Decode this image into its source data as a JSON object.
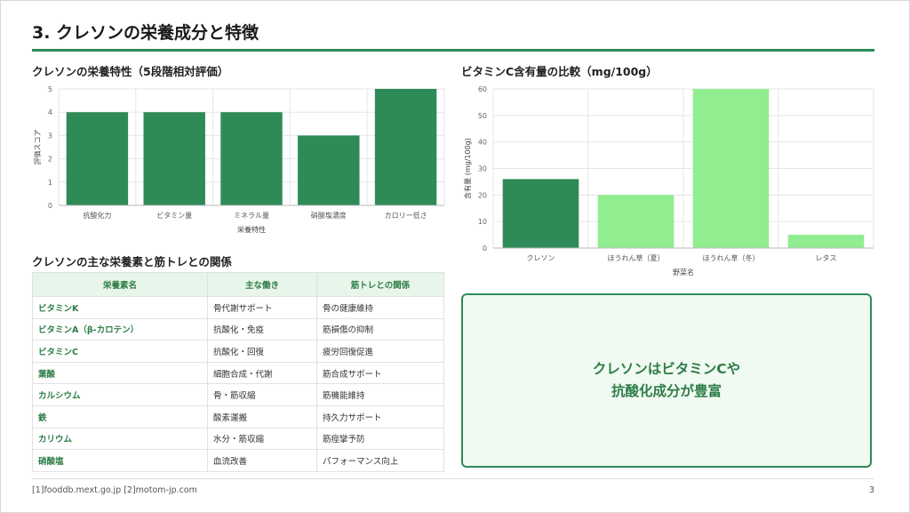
{
  "slide": {
    "title": "3. クレソンの栄養成分と特徴",
    "footer": "[1]fooddb.mext.go.jp   [2]motom-jp.com",
    "page_number": "3"
  },
  "sections": {
    "chart1_title": "クレソンの栄養特性（5段階相対評価）",
    "chart2_title": "ビタミンC含有量の比較（mg/100g）",
    "table_title": "クレソンの主な栄養素と筋トレとの関係"
  },
  "chart_data": [
    {
      "type": "bar",
      "categories": [
        "抗酸化力",
        "ビタミン量",
        "ミネラル量",
        "硝酸塩濃度",
        "カロリー低さ"
      ],
      "values": [
        4,
        4,
        4,
        3,
        5
      ],
      "xlabel": "栄養特性",
      "ylabel": "評価スコア",
      "ylim": [
        0,
        5
      ],
      "yticks": [
        "0",
        "1",
        "2",
        "3",
        "4",
        "5"
      ],
      "grid": true,
      "colors": [
        "#2e8b57"
      ]
    },
    {
      "type": "bar",
      "categories": [
        "クレソン",
        "ほうれん草（夏）",
        "ほうれん草（冬）",
        "レタス"
      ],
      "values": [
        26,
        20,
        60,
        5
      ],
      "xlabel": "野菜名",
      "ylabel": "含有量 (mg/100g)",
      "ylim": [
        0,
        60
      ],
      "yticks": [
        "0",
        "10",
        "20",
        "30",
        "40",
        "50",
        "60"
      ],
      "grid": true,
      "colors": [
        "#2e8b57",
        "#90ee90",
        "#90ee90",
        "#90ee90"
      ]
    }
  ],
  "table": {
    "headers": [
      "栄養素名",
      "主な働き",
      "筋トレとの関係"
    ],
    "rows": [
      [
        "ビタミンK",
        "骨代謝サポート",
        "骨の健康維持"
      ],
      [
        "ビタミンA（β-カロテン）",
        "抗酸化・免疫",
        "筋損傷の抑制"
      ],
      [
        "ビタミンC",
        "抗酸化・回復",
        "疲労回復促進"
      ],
      [
        "葉酸",
        "細胞合成・代謝",
        "筋合成サポート"
      ],
      [
        "カルシウム",
        "骨・筋収縮",
        "筋機能維持"
      ],
      [
        "鉄",
        "酸素運搬",
        "持久力サポート"
      ],
      [
        "カリウム",
        "水分・筋収縮",
        "筋痙攣予防"
      ],
      [
        "硝酸塩",
        "血流改善",
        "パフォーマンス向上"
      ]
    ]
  },
  "callout": {
    "line1": "クレソンはビタミンCや",
    "line2": "抗酸化成分が豊富"
  },
  "colors": {
    "accent": "#2e8b57",
    "light_bar": "#90ee90",
    "header_bg": "#e8f5ea"
  }
}
